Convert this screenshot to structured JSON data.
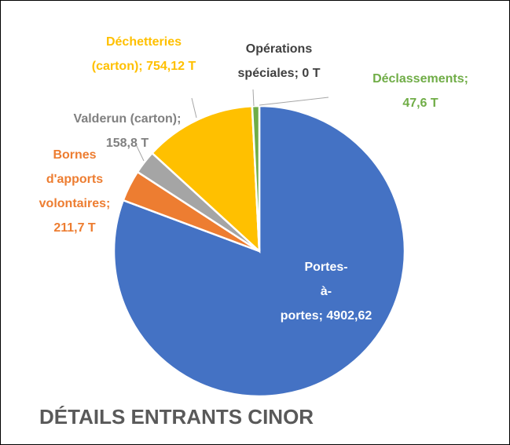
{
  "chart_data": {
    "type": "pie",
    "title": "DÉTAILS ENTRANTS CINOR",
    "values": [
      4902.62,
      211.7,
      158.8,
      754.12,
      0,
      47.6
    ],
    "value_labels": [
      "Portes-à-portes; 4902,62 T",
      "Bornes d'apports volontaires; 211,7 T",
      "Valderun (carton); 158,8 T",
      "Déchetteries (carton); 754,12 T",
      "Opérations spéciales; 0 T",
      "Déclassements; 47,6 T"
    ],
    "colors": [
      "#4472c4",
      "#ed7d31",
      "#a5a5a5",
      "#ffc000",
      "#5b9bd5",
      "#70ad47"
    ],
    "label_colors": [
      "#ffffff",
      "#ed7d31",
      "#808080",
      "#ffc000",
      "#404040",
      "#70ad47"
    ]
  }
}
